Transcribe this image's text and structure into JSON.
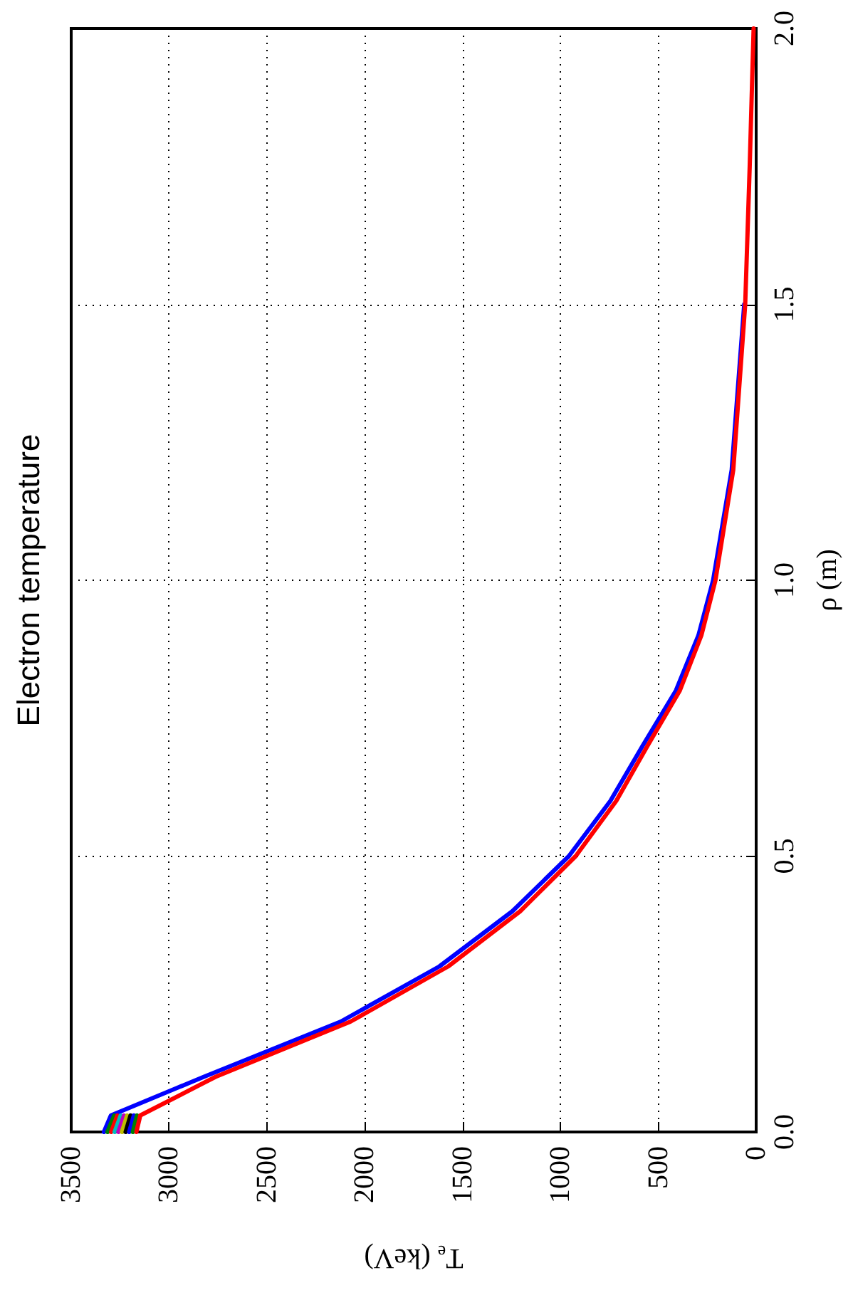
{
  "chart_data": {
    "type": "line",
    "title": "Electron temperature",
    "xlabel": "T$_{e}$ (keV)",
    "ylabel": "ρ (m)",
    "xlim": [
      3500,
      0
    ],
    "xticks": [
      0,
      500,
      1000,
      1500,
      2000,
      2500,
      3000,
      3500
    ],
    "ylim": [
      0,
      2
    ],
    "yticks": [
      {
        "value": 0,
        "label": "0.0"
      },
      {
        "value": 0.5,
        "label": "0.5"
      },
      {
        "value": 1,
        "label": "1.0"
      },
      {
        "value": 1.5,
        "label": "1.5"
      },
      {
        "value": 2,
        "label": "2.0"
      }
    ],
    "grid": true,
    "marker": "none",
    "line_style": "solid",
    "series": [
      {
        "color": "#0000ff",
        "x": [
          3333,
          3297,
          2822,
          2123,
          1619,
          1246,
          957,
          745,
          580,
          410,
          295,
          220,
          125,
          61
        ],
        "values": [
          0,
          0.03,
          0.1,
          0.2,
          0.3,
          0.4,
          0.5,
          0.6,
          0.7,
          0.8,
          0.9,
          1.0,
          1.2,
          1.5
        ]
      },
      {
        "color": "#008000",
        "x": [
          3315,
          3280
        ],
        "values": [
          0,
          0.03
        ]
      },
      {
        "color": "#ff0000",
        "x": [
          3296,
          3264
        ],
        "values": [
          0,
          0.03
        ]
      },
      {
        "color": "#00bfbf",
        "x": [
          3278,
          3247
        ],
        "values": [
          0,
          0.03
        ]
      },
      {
        "color": "#bf00bf",
        "x": [
          3259,
          3230
        ],
        "values": [
          0,
          0.03
        ]
      },
      {
        "color": "#bfbf00",
        "x": [
          3241,
          3214
        ],
        "values": [
          0,
          0.03
        ]
      },
      {
        "color": "#000000",
        "x": [
          3222,
          3197
        ],
        "values": [
          0,
          0.03
        ]
      },
      {
        "color": "#0000ff",
        "x": [
          3204,
          3180
        ],
        "values": [
          0,
          0.03
        ]
      },
      {
        "color": "#008000",
        "x": [
          3185,
          3164
        ],
        "values": [
          0,
          0.03
        ]
      },
      {
        "color": "#ff0000",
        "x": [
          3167,
          3147,
          2762,
          2073,
          1574,
          1206,
          922,
          715,
          555,
          390,
          280,
          208,
          117,
          56,
          33,
          13
        ],
        "values": [
          0,
          0.03,
          0.1,
          0.2,
          0.3,
          0.4,
          0.5,
          0.6,
          0.7,
          0.8,
          0.9,
          1.0,
          1.2,
          1.5,
          1.75,
          2.0
        ]
      }
    ]
  }
}
